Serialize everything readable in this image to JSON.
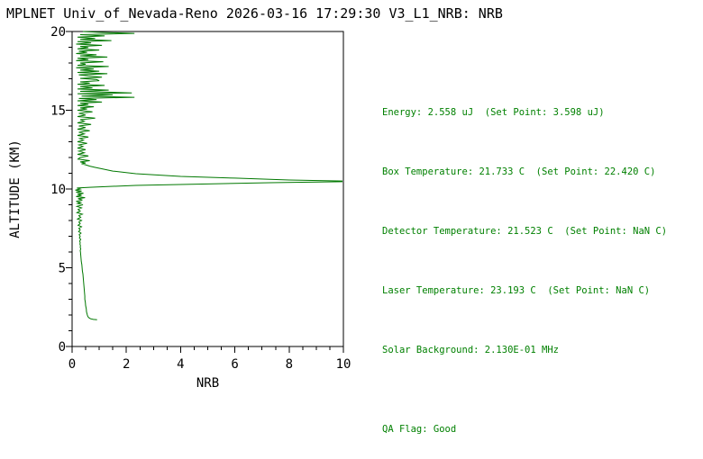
{
  "title": "MPLNET Univ_of_Nevada-Reno 2026-03-16 17:29:30 V3_L1_NRB: NRB",
  "colors": {
    "background": "#ffffff",
    "title_text": "#000000",
    "axis_lines": "#000000",
    "info_text": "#008000",
    "profile_line": "#007800"
  },
  "info_panel": {
    "lines": [
      "Energy: 2.558 uJ  (Set Point: 3.598 uJ)",
      "Box Temperature: 21.733 C  (Set Point: 22.420 C)",
      "Detector Temperature: 21.523 C  (Set Point: NaN C)",
      "Laser Temperature: 23.193 C  (Set Point: NaN C)",
      "Solar Background: 2.130E-01 MHz"
    ],
    "qa_flag": "QA Flag: Good"
  },
  "chart_data": {
    "type": "line",
    "title": "",
    "xlabel": "NRB",
    "ylabel": "ALTITUDE (KM)",
    "xlim": [
      0,
      10
    ],
    "ylim": [
      0,
      20
    ],
    "x_ticks": [
      0,
      2,
      4,
      6,
      8,
      10
    ],
    "y_ticks": [
      0,
      5,
      10,
      15,
      20
    ],
    "x_minor_tick_step": 0.5,
    "y_minor_tick_step": 1,
    "grid": false,
    "legend": "none",
    "line_color": "#007800",
    "series": [
      {
        "name": "NRB vertical profile",
        "points_alt_km_nrb": [
          [
            20.0,
            0.4
          ],
          [
            19.95,
            1.0
          ],
          [
            19.88,
            2.3
          ],
          [
            19.8,
            0.3
          ],
          [
            19.72,
            1.2
          ],
          [
            19.64,
            0.2
          ],
          [
            19.56,
            0.85
          ],
          [
            19.5,
            0.3
          ],
          [
            19.42,
            1.45
          ],
          [
            19.36,
            0.2
          ],
          [
            19.28,
            0.7
          ],
          [
            19.2,
            0.15
          ],
          [
            19.12,
            1.1
          ],
          [
            19.05,
            0.3
          ],
          [
            18.98,
            0.6
          ],
          [
            18.9,
            0.2
          ],
          [
            18.82,
            1.0
          ],
          [
            18.75,
            0.25
          ],
          [
            18.68,
            0.55
          ],
          [
            18.6,
            0.15
          ],
          [
            18.52,
            0.9
          ],
          [
            18.45,
            0.3
          ],
          [
            18.38,
            1.3
          ],
          [
            18.3,
            0.2
          ],
          [
            18.22,
            0.6
          ],
          [
            18.15,
            0.15
          ],
          [
            18.08,
            1.15
          ],
          [
            18.0,
            0.3
          ],
          [
            17.92,
            0.5
          ],
          [
            17.85,
            0.2
          ],
          [
            17.78,
            1.35
          ],
          [
            17.7,
            0.15
          ],
          [
            17.62,
            0.8
          ],
          [
            17.55,
            0.3
          ],
          [
            17.48,
            1.0
          ],
          [
            17.4,
            0.2
          ],
          [
            17.32,
            1.3
          ],
          [
            17.25,
            0.25
          ],
          [
            17.18,
            0.6
          ],
          [
            17.1,
            1.1
          ],
          [
            17.02,
            0.3
          ],
          [
            16.95,
            0.9
          ],
          [
            16.88,
            1.0
          ],
          [
            16.8,
            0.3
          ],
          [
            16.72,
            0.65
          ],
          [
            16.65,
            0.2
          ],
          [
            16.58,
            1.2
          ],
          [
            16.5,
            0.3
          ],
          [
            16.42,
            0.75
          ],
          [
            16.35,
            0.2
          ],
          [
            16.28,
            1.35
          ],
          [
            16.2,
            0.3
          ],
          [
            16.1,
            2.2
          ],
          [
            16.05,
            0.2
          ],
          [
            15.98,
            1.5
          ],
          [
            15.9,
            0.35
          ],
          [
            15.82,
            2.3
          ],
          [
            15.75,
            0.25
          ],
          [
            15.68,
            0.9
          ],
          [
            15.6,
            0.2
          ],
          [
            15.52,
            1.1
          ],
          [
            15.45,
            0.3
          ],
          [
            15.38,
            0.6
          ],
          [
            15.3,
            0.2
          ],
          [
            15.22,
            0.8
          ],
          [
            15.15,
            0.3
          ],
          [
            15.08,
            0.55
          ],
          [
            15.0,
            0.2
          ],
          [
            14.9,
            0.75
          ],
          [
            14.8,
            0.25
          ],
          [
            14.7,
            0.5
          ],
          [
            14.6,
            0.2
          ],
          [
            14.5,
            0.85
          ],
          [
            14.4,
            0.3
          ],
          [
            14.3,
            0.45
          ],
          [
            14.2,
            0.2
          ],
          [
            14.1,
            0.7
          ],
          [
            14.0,
            0.25
          ],
          [
            13.9,
            0.5
          ],
          [
            13.8,
            0.2
          ],
          [
            13.7,
            0.65
          ],
          [
            13.6,
            0.25
          ],
          [
            13.5,
            0.45
          ],
          [
            13.4,
            0.2
          ],
          [
            13.3,
            0.6
          ],
          [
            13.2,
            0.28
          ],
          [
            13.1,
            0.42
          ],
          [
            13.0,
            0.2
          ],
          [
            12.9,
            0.55
          ],
          [
            12.8,
            0.25
          ],
          [
            12.7,
            0.4
          ],
          [
            12.6,
            0.2
          ],
          [
            12.5,
            0.5
          ],
          [
            12.4,
            0.25
          ],
          [
            12.3,
            0.45
          ],
          [
            12.2,
            0.2
          ],
          [
            12.1,
            0.6
          ],
          [
            12.0,
            0.3
          ],
          [
            11.9,
            0.22
          ],
          [
            11.8,
            0.65
          ],
          [
            11.72,
            0.3
          ],
          [
            11.65,
            0.5
          ],
          [
            11.6,
            0.35
          ],
          [
            11.54,
            0.5
          ],
          [
            11.45,
            0.65
          ],
          [
            11.37,
            0.85
          ],
          [
            11.26,
            1.15
          ],
          [
            11.14,
            1.5
          ],
          [
            10.97,
            2.35
          ],
          [
            10.8,
            4.0
          ],
          [
            10.69,
            6.0
          ],
          [
            10.57,
            8.0
          ],
          [
            10.51,
            9.95
          ],
          [
            10.46,
            9.95
          ],
          [
            10.4,
            7.3
          ],
          [
            10.31,
            4.6
          ],
          [
            10.23,
            2.35
          ],
          [
            10.11,
            0.65
          ],
          [
            10.06,
            0.18
          ],
          [
            10.0,
            0.3
          ],
          [
            9.93,
            0.12
          ],
          [
            9.86,
            0.35
          ],
          [
            9.8,
            0.15
          ],
          [
            9.73,
            0.42
          ],
          [
            9.66,
            0.2
          ],
          [
            9.6,
            0.35
          ],
          [
            9.52,
            0.15
          ],
          [
            9.45,
            0.48
          ],
          [
            9.38,
            0.22
          ],
          [
            9.3,
            0.38
          ],
          [
            9.22,
            0.15
          ],
          [
            9.15,
            0.32
          ],
          [
            9.08,
            0.2
          ],
          [
            9.0,
            0.4
          ],
          [
            8.9,
            0.18
          ],
          [
            8.8,
            0.35
          ],
          [
            8.7,
            0.22
          ],
          [
            8.6,
            0.3
          ],
          [
            8.5,
            0.18
          ],
          [
            8.4,
            0.38
          ],
          [
            8.3,
            0.25
          ],
          [
            8.2,
            0.32
          ],
          [
            8.1,
            0.2
          ],
          [
            8.0,
            0.35
          ],
          [
            7.9,
            0.25
          ],
          [
            7.8,
            0.3
          ],
          [
            7.7,
            0.22
          ],
          [
            7.6,
            0.35
          ],
          [
            7.5,
            0.25
          ],
          [
            7.4,
            0.3
          ],
          [
            7.3,
            0.24
          ],
          [
            7.2,
            0.33
          ],
          [
            7.1,
            0.26
          ],
          [
            7.0,
            0.3
          ],
          [
            6.9,
            0.27
          ],
          [
            6.8,
            0.32
          ],
          [
            6.7,
            0.28
          ],
          [
            6.6,
            0.3
          ],
          [
            6.5,
            0.29
          ],
          [
            6.4,
            0.31
          ],
          [
            6.3,
            0.3
          ],
          [
            6.2,
            0.32
          ],
          [
            6.1,
            0.3
          ],
          [
            6.0,
            0.31
          ],
          [
            5.8,
            0.32
          ],
          [
            5.6,
            0.33
          ],
          [
            5.4,
            0.34
          ],
          [
            5.2,
            0.36
          ],
          [
            5.0,
            0.37
          ],
          [
            4.8,
            0.38
          ],
          [
            4.6,
            0.4
          ],
          [
            4.4,
            0.41
          ],
          [
            4.2,
            0.42
          ],
          [
            4.0,
            0.43
          ],
          [
            3.8,
            0.44
          ],
          [
            3.6,
            0.45
          ],
          [
            3.4,
            0.46
          ],
          [
            3.2,
            0.47
          ],
          [
            3.0,
            0.47
          ],
          [
            2.8,
            0.49
          ],
          [
            2.6,
            0.5
          ],
          [
            2.4,
            0.52
          ],
          [
            2.2,
            0.53
          ],
          [
            2.0,
            0.56
          ],
          [
            1.9,
            0.58
          ],
          [
            1.82,
            0.62
          ],
          [
            1.76,
            0.68
          ],
          [
            1.72,
            0.78
          ],
          [
            1.7,
            0.92
          ]
        ]
      }
    ]
  }
}
